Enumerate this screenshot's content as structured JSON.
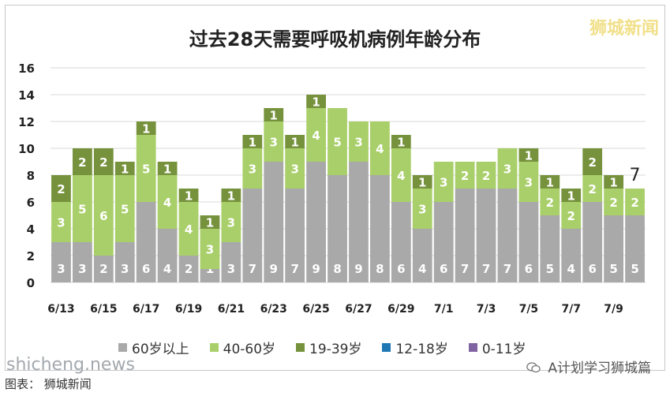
{
  "title": "过去28天需要呼吸机病例年龄分布",
  "watermark_top": "狮城新闻",
  "watermark_site": "shicheng.news",
  "footer_left": "图表：   狮城新闻",
  "footer_right": "A计划学习狮城篇",
  "colors": {
    "s60plus": "#a9a9a9",
    "s40_60": "#a9cf6a",
    "s19_39": "#76923c",
    "s12_18": "#1f77b4",
    "s0_11": "#8064a2"
  },
  "chart_data": {
    "type": "bar",
    "stacked": true,
    "categories": [
      "6/13",
      "6/14",
      "6/15",
      "6/16",
      "6/17",
      "6/18",
      "6/19",
      "6/20",
      "6/21",
      "6/22",
      "6/23",
      "6/24",
      "6/25",
      "6/26",
      "6/27",
      "6/28",
      "6/29",
      "6/30",
      "7/1",
      "7/2",
      "7/3",
      "7/4",
      "7/5",
      "7/6",
      "7/7",
      "7/8",
      "7/9",
      "7/10"
    ],
    "tick_labels": [
      "6/13",
      "",
      "6/15",
      "",
      "6/17",
      "",
      "6/19",
      "",
      "6/21",
      "",
      "6/23",
      "",
      "6/25",
      "",
      "6/27",
      "",
      "6/29",
      "",
      "7/1",
      "",
      "7/3",
      "",
      "7/5",
      "",
      "7/7",
      "",
      "7/9",
      ""
    ],
    "series": [
      {
        "name": "60岁以上",
        "values": [
          3,
          3,
          2,
          3,
          6,
          4,
          2,
          1,
          3,
          7,
          9,
          7,
          9,
          8,
          9,
          8,
          6,
          4,
          6,
          7,
          7,
          7,
          6,
          5,
          4,
          6,
          5,
          5
        ]
      },
      {
        "name": "40-60岁",
        "values": [
          3,
          5,
          6,
          5,
          5,
          4,
          4,
          3,
          3,
          3,
          3,
          3,
          4,
          5,
          3,
          4,
          4,
          3,
          3,
          2,
          2,
          3,
          3,
          2,
          2,
          2,
          2,
          2
        ]
      },
      {
        "name": "19-39岁",
        "values": [
          2,
          2,
          2,
          1,
          1,
          1,
          1,
          1,
          1,
          1,
          1,
          1,
          1,
          0,
          0,
          0,
          1,
          1,
          0,
          0,
          0,
          0,
          1,
          1,
          1,
          2,
          1,
          0
        ]
      },
      {
        "name": "12-18岁",
        "values": [
          0,
          0,
          0,
          0,
          0,
          0,
          0,
          0,
          0,
          0,
          0,
          0,
          0,
          0,
          0,
          0,
          0,
          0,
          0,
          0,
          0,
          0,
          0,
          0,
          0,
          0,
          0,
          0
        ]
      },
      {
        "name": "0-11岁",
        "values": [
          0,
          0,
          0,
          0,
          0,
          0,
          0,
          0,
          0,
          0,
          0,
          0,
          0,
          0,
          0,
          0,
          0,
          0,
          0,
          0,
          0,
          0,
          0,
          0,
          0,
          0,
          0,
          0
        ]
      }
    ],
    "annotation": {
      "category": "7/10",
      "text": "7"
    },
    "ylim": [
      0,
      16
    ],
    "yticks": [
      0,
      2,
      4,
      6,
      8,
      10,
      12,
      14,
      16
    ],
    "grid": true,
    "legend_position": "bottom"
  }
}
